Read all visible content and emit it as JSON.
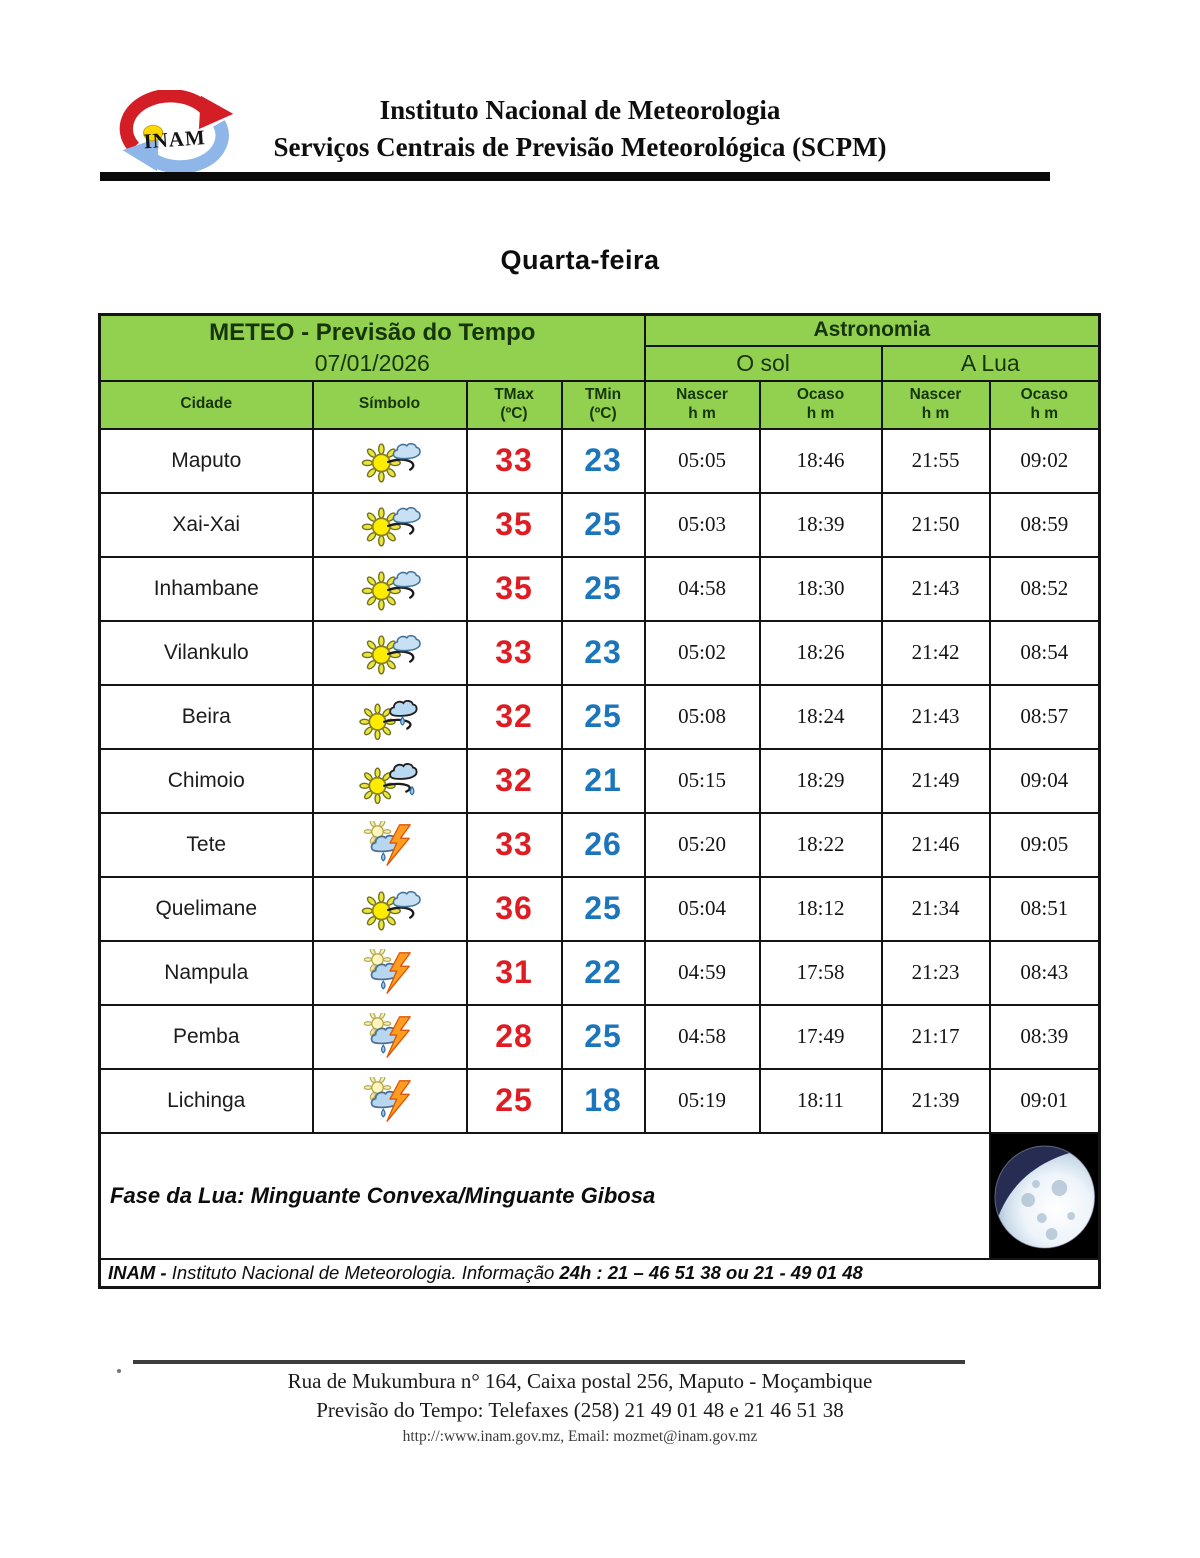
{
  "colors": {
    "header_green": "#92d050",
    "tmax_red": "#e11b22",
    "tmin_blue": "#1b75bc"
  },
  "header": {
    "logo_text": "INAM",
    "org_line1": "Instituto Nacional de Meteorologia",
    "org_line2": "Serviços Centrais de Previsão Meteorológica (SCPM)"
  },
  "day_title": "Quarta-feira",
  "table": {
    "meteo_title": "METEO - Previsão do Tempo",
    "date": "07/01/2026",
    "astronomia": "Astronomia",
    "sun_group": "O sol",
    "moon_group": "A Lua",
    "col_headers": {
      "cidade": "Cidade",
      "simbolo": "Símbolo",
      "tmax": {
        "l1": "TMax",
        "l2": "(ºC)"
      },
      "tmin": {
        "l1": "TMin",
        "l2": "(ºC)"
      },
      "sun_rise": {
        "l1": "Nascer",
        "l2": "h m"
      },
      "sun_set": {
        "l1": "Ocaso",
        "l2": "h m"
      },
      "moon_rise": {
        "l1": "Nascer",
        "l2": "h m"
      },
      "moon_set": {
        "l1": "Ocaso",
        "l2": "h m"
      }
    },
    "rows": [
      {
        "city": "Maputo",
        "icon": "partly-cloudy",
        "tmax": 33,
        "tmin": 23,
        "sun_rise": "05:05",
        "sun_set": "18:46",
        "moon_rise": "21:55",
        "moon_set": "09:02"
      },
      {
        "city": "Xai-Xai",
        "icon": "partly-cloudy",
        "tmax": 35,
        "tmin": 25,
        "sun_rise": "05:03",
        "sun_set": "18:39",
        "moon_rise": "21:50",
        "moon_set": "08:59"
      },
      {
        "city": "Inhambane",
        "icon": "partly-cloudy",
        "tmax": 35,
        "tmin": 25,
        "sun_rise": "04:58",
        "sun_set": "18:30",
        "moon_rise": "21:43",
        "moon_set": "08:52"
      },
      {
        "city": "Vilankulo",
        "icon": "partly-cloudy",
        "tmax": 33,
        "tmin": 23,
        "sun_rise": "05:02",
        "sun_set": "18:26",
        "moon_rise": "21:42",
        "moon_set": "08:54"
      },
      {
        "city": "Beira",
        "icon": "sun-rain-cloud",
        "tmax": 32,
        "tmin": 25,
        "sun_rise": "05:08",
        "sun_set": "18:24",
        "moon_rise": "21:43",
        "moon_set": "08:57"
      },
      {
        "city": "Chimoio",
        "icon": "sun-rain-shower",
        "tmax": 32,
        "tmin": 21,
        "sun_rise": "05:15",
        "sun_set": "18:29",
        "moon_rise": "21:49",
        "moon_set": "09:04"
      },
      {
        "city": "Tete",
        "icon": "thunderstorm",
        "tmax": 33,
        "tmin": 26,
        "sun_rise": "05:20",
        "sun_set": "18:22",
        "moon_rise": "21:46",
        "moon_set": "09:05"
      },
      {
        "city": "Quelimane",
        "icon": "partly-cloudy",
        "tmax": 36,
        "tmin": 25,
        "sun_rise": "05:04",
        "sun_set": "18:12",
        "moon_rise": "21:34",
        "moon_set": "08:51"
      },
      {
        "city": "Nampula",
        "icon": "thunderstorm",
        "tmax": 31,
        "tmin": 22,
        "sun_rise": "04:59",
        "sun_set": "17:58",
        "moon_rise": "21:23",
        "moon_set": "08:43"
      },
      {
        "city": "Pemba",
        "icon": "thunderstorm",
        "tmax": 28,
        "tmin": 25,
        "sun_rise": "04:58",
        "sun_set": "17:49",
        "moon_rise": "21:17",
        "moon_set": "08:39"
      },
      {
        "city": "Lichinga",
        "icon": "thunderstorm",
        "tmax": 25,
        "tmin": 18,
        "sun_rise": "05:19",
        "sun_set": "18:11",
        "moon_rise": "21:39",
        "moon_set": "09:01"
      }
    ],
    "moon_phase": "Fase da Lua: Minguante Convexa/Minguante Gibosa",
    "info": {
      "prefix": "INAM - ",
      "middle": "Instituto Nacional de Meteorologia. Informação ",
      "phones": "24h : 21 – 46 51 38 ou 21 - 49 01 48"
    }
  },
  "footer": {
    "address": "Rua de Mukumbura n° 164, Caixa postal  256, Maputo -  Moçambique",
    "phones": "Previsão do Tempo: Telefaxes (258) 21 49 01 48 e  21 46 51 38",
    "web": "http://:www.inam.gov.mz, Email: mozmet@inam.gov.mz"
  }
}
